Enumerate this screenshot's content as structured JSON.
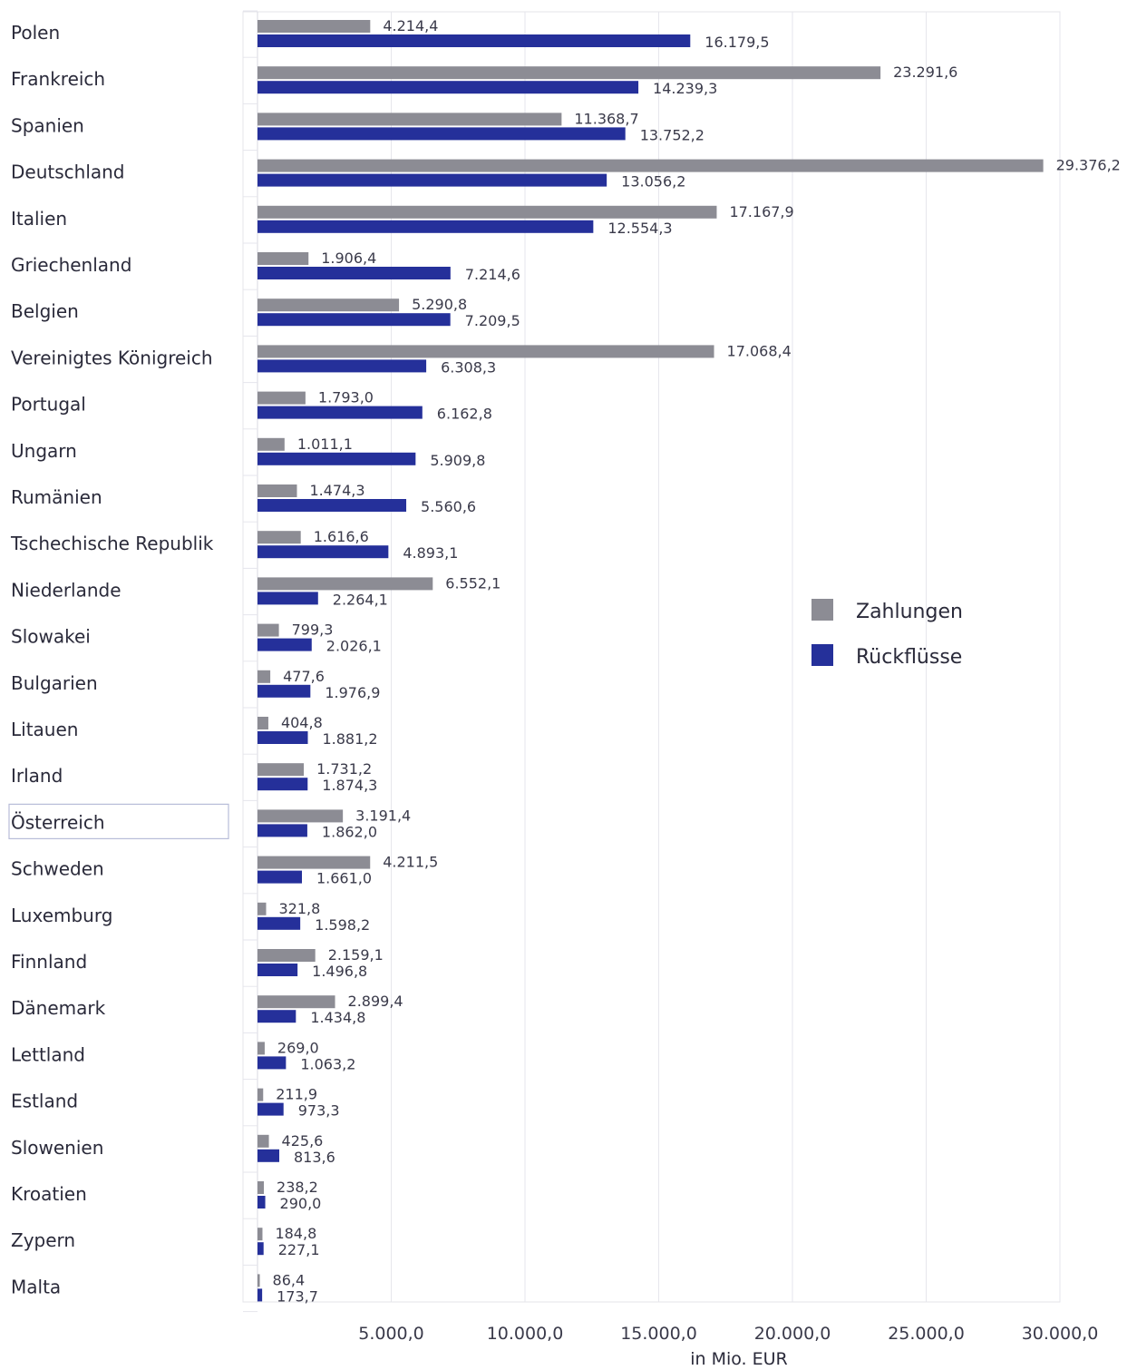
{
  "chart_data": {
    "type": "bar",
    "orientation": "horizontal",
    "xlabel": "in Mio. EUR",
    "xlim": [
      0,
      30000
    ],
    "xticks": [
      5000,
      10000,
      15000,
      20000,
      25000,
      30000
    ],
    "xtick_labels": [
      "5.000,0",
      "10.000,0",
      "15.000,0",
      "20.000,0",
      "25.000,0",
      "30.000,0"
    ],
    "grid": "vertical",
    "legend_position": "right",
    "highlighted_category": "Österreich",
    "categories": [
      "Polen",
      "Frankreich",
      "Spanien",
      "Deutschland",
      "Italien",
      "Griechenland",
      "Belgien",
      "Vereinigtes Königreich",
      "Portugal",
      "Ungarn",
      "Rumänien",
      "Tschechische Republik",
      "Niederlande",
      "Slowakei",
      "Bulgarien",
      "Litauen",
      "Irland",
      "Österreich",
      "Schweden",
      "Luxemburg",
      "Finnland",
      "Dänemark",
      "Lettland",
      "Estland",
      "Slowenien",
      "Kroatien",
      "Zypern",
      "Malta"
    ],
    "series": [
      {
        "name": "Zahlungen",
        "color": "#8c8c94",
        "values": [
          4214.4,
          23291.6,
          11368.7,
          29376.2,
          17167.9,
          1906.4,
          5290.8,
          17068.4,
          1793.0,
          1011.1,
          1474.3,
          1616.6,
          6552.1,
          799.3,
          477.6,
          404.8,
          1731.2,
          3191.4,
          4211.5,
          321.8,
          2159.1,
          2899.4,
          269.0,
          211.9,
          425.6,
          238.2,
          184.8,
          86.4
        ],
        "labels": [
          "4.214,4",
          "23.291,6",
          "11.368,7",
          "29.376,2",
          "17.167,9",
          "1.906,4",
          "5.290,8",
          "17.068,4",
          "1.793,0",
          "1.011,1",
          "1.474,3",
          "1.616,6",
          "6.552,1",
          "799,3",
          "477,6",
          "404,8",
          "1.731,2",
          "3.191,4",
          "4.211,5",
          "321,8",
          "2.159,1",
          "2.899,4",
          "269,0",
          "211,9",
          "425,6",
          "238,2",
          "184,8",
          "86,4"
        ]
      },
      {
        "name": "Rückflüsse",
        "color": "#25309a",
        "values": [
          16179.5,
          14239.3,
          13752.2,
          13056.2,
          12554.3,
          7214.6,
          7209.5,
          6308.3,
          6162.8,
          5909.8,
          5560.6,
          4893.1,
          2264.1,
          2026.1,
          1976.9,
          1881.2,
          1874.3,
          1862.0,
          1661.0,
          1598.2,
          1496.8,
          1434.8,
          1063.2,
          973.3,
          813.6,
          290.0,
          227.1,
          173.7
        ],
        "labels": [
          "16.179,5",
          "14.239,3",
          "13.752,2",
          "13.056,2",
          "12.554,3",
          "7.214,6",
          "7.209,5",
          "6.308,3",
          "6.162,8",
          "5.909,8",
          "5.560,6",
          "4.893,1",
          "2.264,1",
          "2.026,1",
          "1.976,9",
          "1.881,2",
          "1.874,3",
          "1.862,0",
          "1.661,0",
          "1.598,2",
          "1.496,8",
          "1.434,8",
          "1.063,2",
          "973,3",
          "813,6",
          "290,0",
          "227,1",
          "173,7"
        ]
      }
    ]
  }
}
